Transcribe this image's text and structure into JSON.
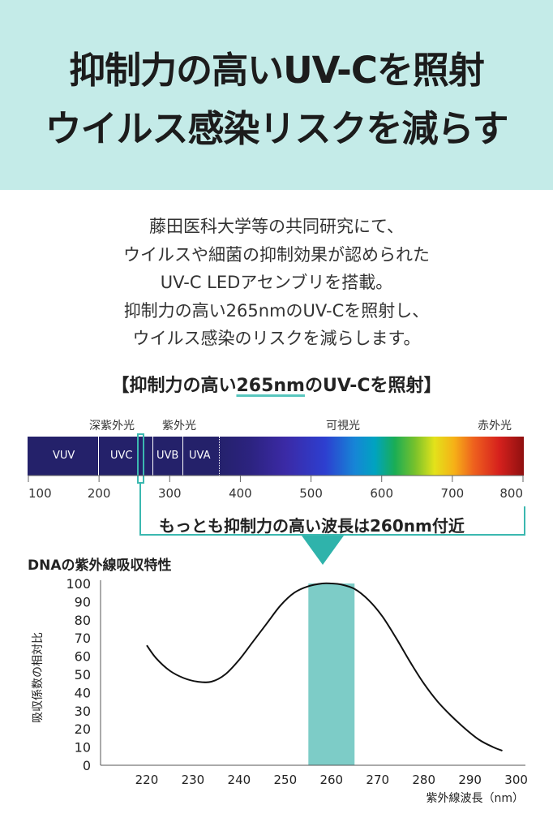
{
  "hero": {
    "line1": "抑制力の高いUV-Cを照射",
    "line2": "ウイルス感染リスクを減らす"
  },
  "intro": {
    "lines": [
      "藤田医科大学等の共同研究にて、",
      "ウイルスや細菌の抑制効果が認められた",
      "UV-C LEDアセンブリを搭載。",
      "抑制力の高い265nmのUV-Cを照射し、",
      "ウイルス感染のリスクを減らします。"
    ]
  },
  "section": {
    "before": "【抑制力の高い",
    "highlight": "265nm",
    "after": "のUV-Cを照射】"
  },
  "spectrum": {
    "top_labels": {
      "deep_uv": "深紫外光",
      "uv": "紫外光",
      "visible": "可視光",
      "ir": "赤外光"
    },
    "bands": {
      "vuv": "VUV",
      "uvc": "UVC",
      "uvb": "UVB",
      "uva": "UVA"
    },
    "ticks": [
      "100",
      "200",
      "300",
      "400",
      "500",
      "600",
      "700",
      "800"
    ],
    "callout": "もっとも抑制力の高い波長は260nm付近",
    "accent_color": "#3bb8b0"
  },
  "chart_title": "DNAの紫外線吸収特性",
  "chart_data": {
    "type": "line",
    "title": "DNAの紫外線吸収特性",
    "xlabel": "紫外線波長（nm）",
    "ylabel": "吸収係数の相対比",
    "xlim": [
      210,
      302
    ],
    "ylim": [
      0,
      100
    ],
    "x_ticks": [
      220,
      230,
      240,
      250,
      260,
      270,
      280,
      290,
      300
    ],
    "y_ticks": [
      0,
      10,
      20,
      30,
      40,
      50,
      60,
      70,
      80,
      90,
      100
    ],
    "highlight_range": [
      255,
      265
    ],
    "highlight_color": "#7dccc7",
    "series": [
      {
        "x": [
          220,
          222,
          225,
          228,
          231,
          234,
          237,
          240,
          243,
          246,
          249,
          252,
          255,
          258,
          260,
          262,
          265,
          268,
          271,
          274,
          277,
          280,
          283,
          286,
          289,
          292,
          295,
          297
        ],
        "y": [
          66,
          59,
          52,
          48,
          46,
          46,
          50,
          58,
          68,
          78,
          88,
          95,
          98.5,
          100,
          100,
          99.5,
          97,
          91,
          82,
          70,
          57,
          45,
          35,
          27,
          20,
          14,
          10,
          8
        ]
      }
    ]
  }
}
